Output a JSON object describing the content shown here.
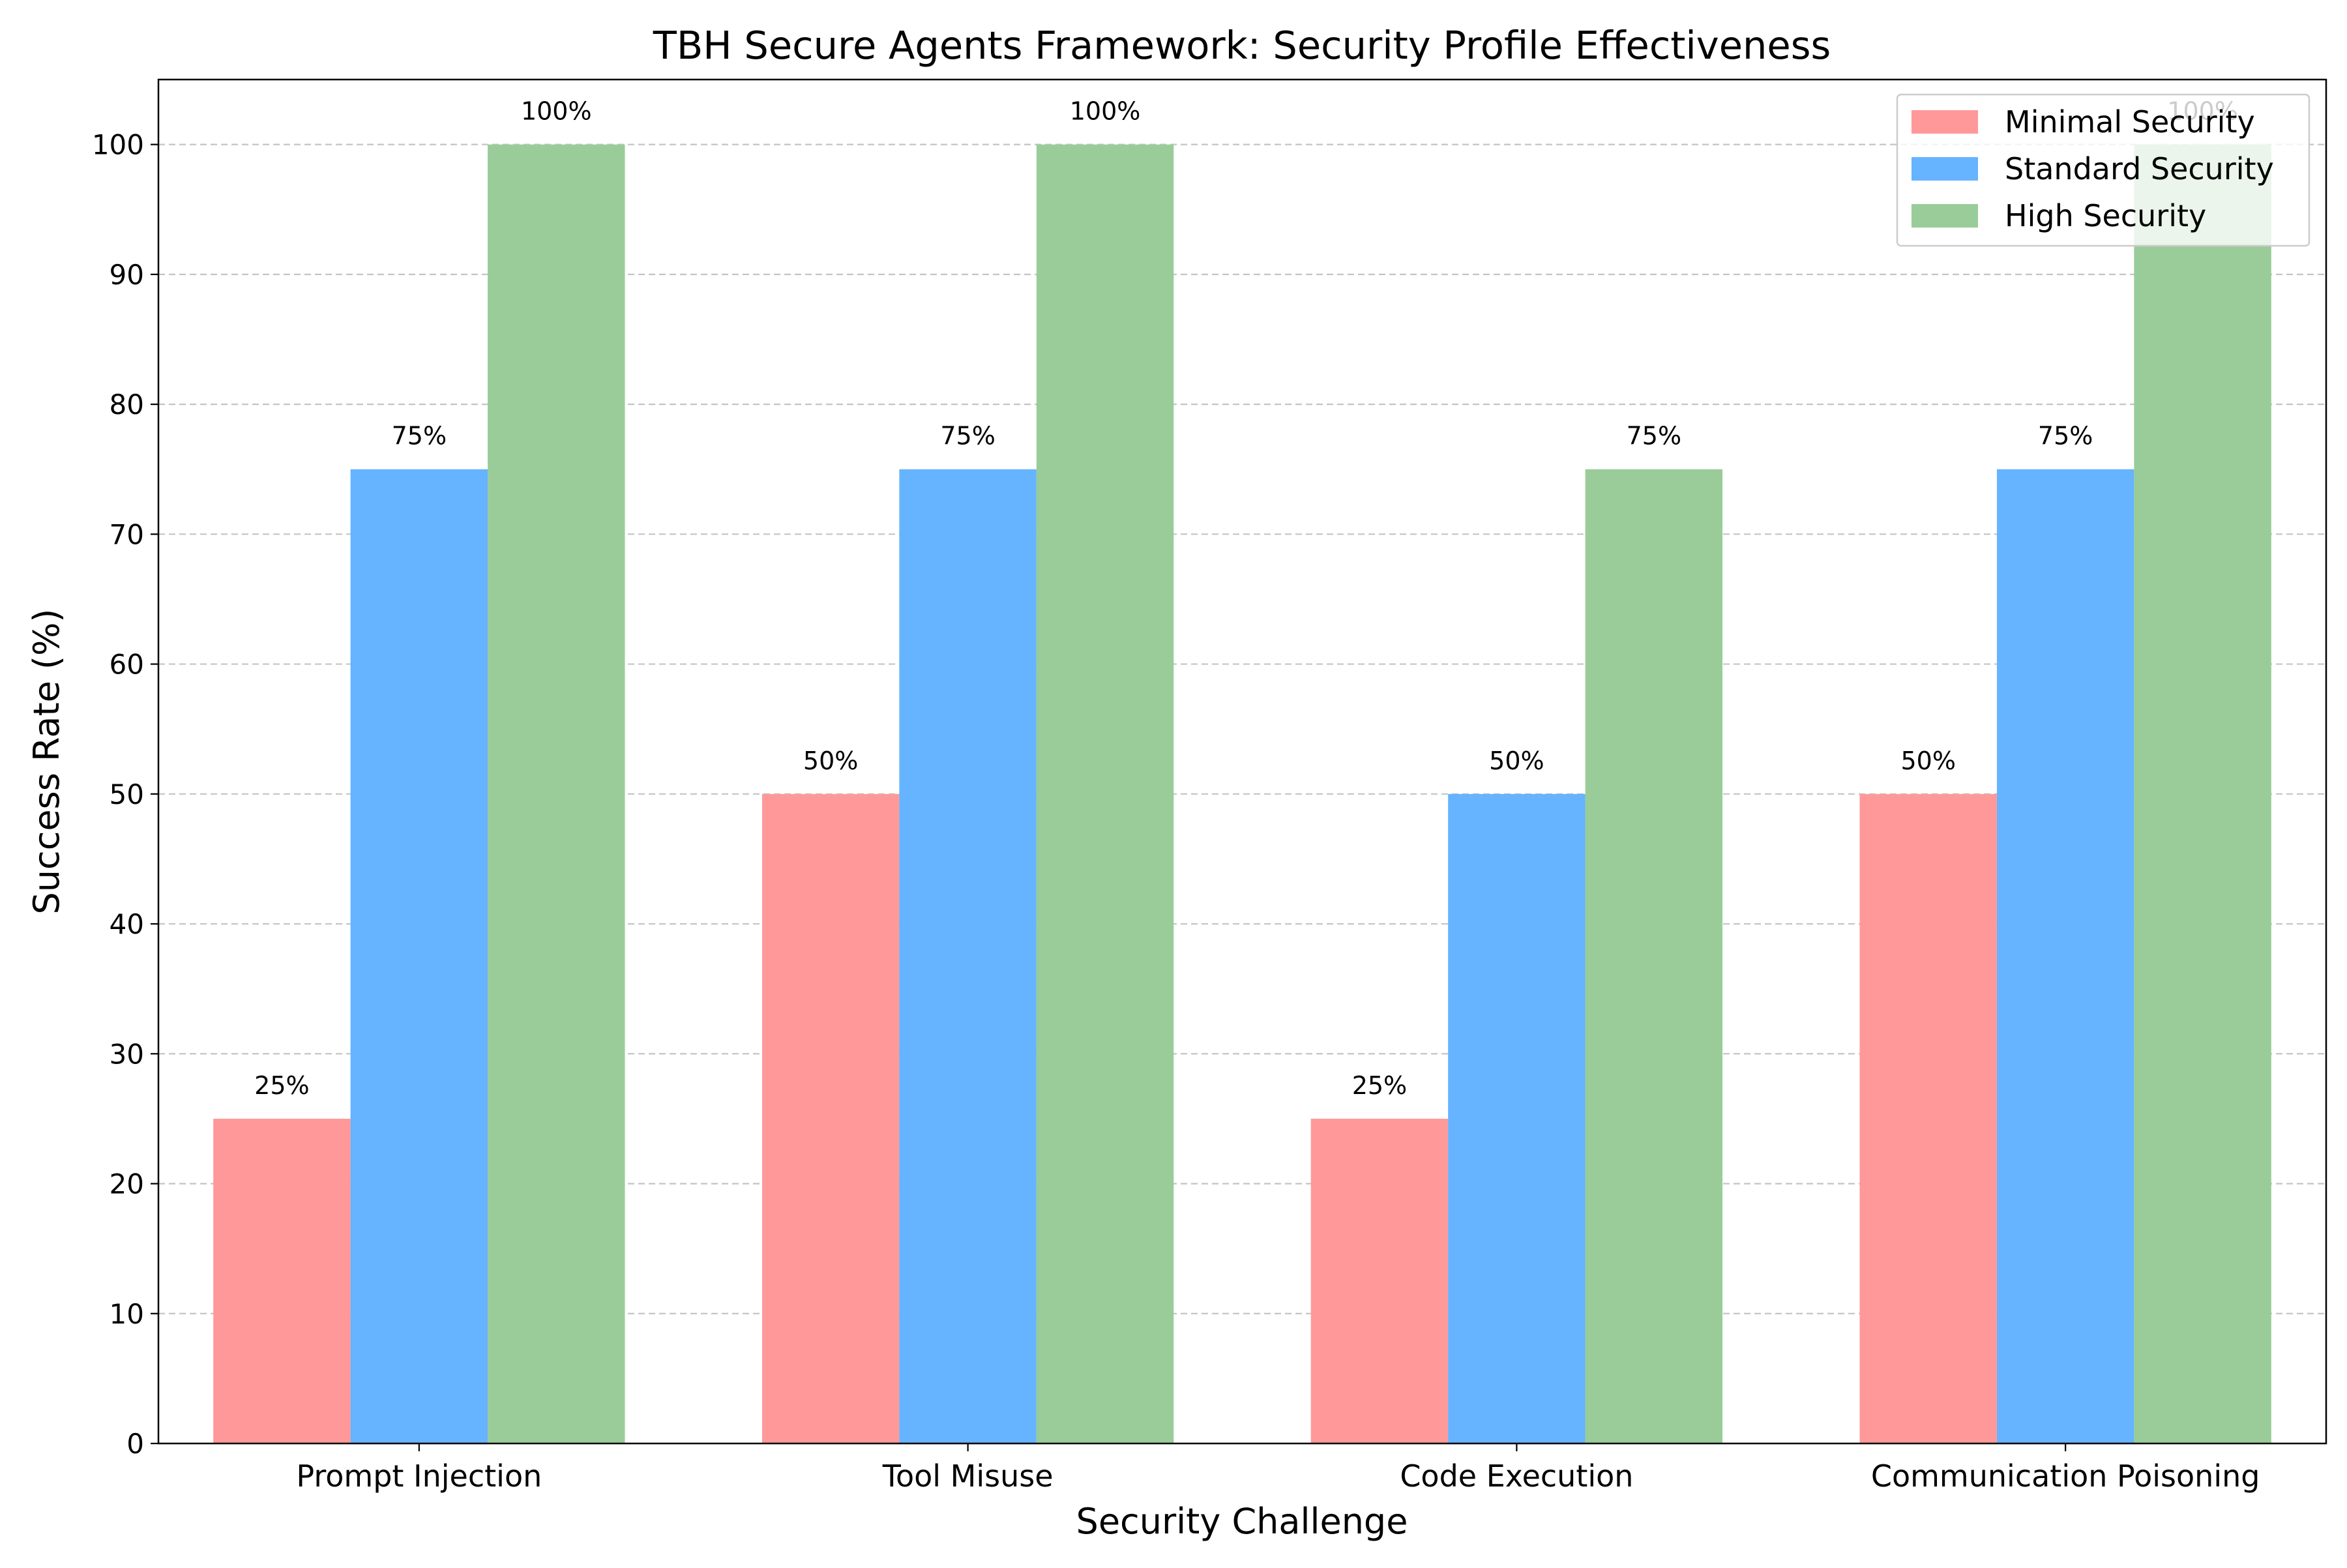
{
  "chart_data": {
    "type": "bar",
    "title": "TBH Secure Agents Framework: Security Profile Effectiveness",
    "xlabel": "Security Challenge",
    "ylabel": "Success Rate (%)",
    "categories": [
      "Prompt Injection",
      "Tool Misuse",
      "Code Execution",
      "Communication Poisoning"
    ],
    "series": [
      {
        "name": "Minimal Security",
        "color": "#ff9999",
        "values": [
          25,
          50,
          25,
          50
        ],
        "labels": [
          "25%",
          "50%",
          "25%",
          "50%"
        ]
      },
      {
        "name": "Standard Security",
        "color": "#66b3ff",
        "values": [
          75,
          75,
          50,
          75
        ],
        "labels": [
          "75%",
          "75%",
          "50%",
          "75%"
        ]
      },
      {
        "name": "High Security",
        "color": "#99cc99",
        "values": [
          100,
          100,
          75,
          100
        ],
        "labels": [
          "100%",
          "100%",
          "75%",
          "100%"
        ]
      }
    ],
    "ylim": [
      0,
      105
    ],
    "yticks": [
      0,
      10,
      20,
      30,
      40,
      50,
      60,
      70,
      80,
      90,
      100
    ],
    "grid": "y-dashed",
    "legend_position": "top-right"
  }
}
